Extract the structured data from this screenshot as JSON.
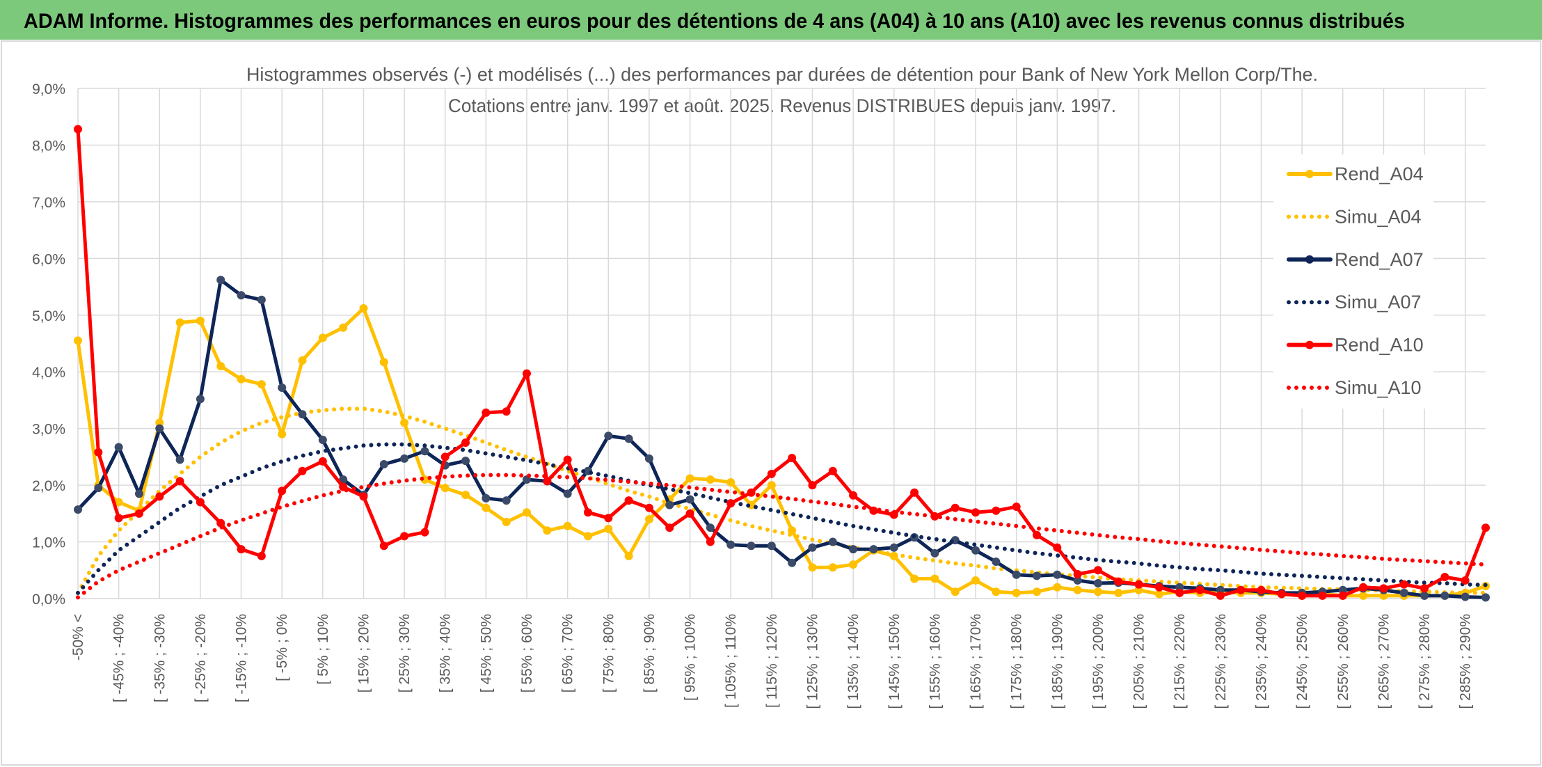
{
  "chart_data": {
    "type": "line",
    "header": "ADAM Informe. Histogrammes des performances en euros pour des détentions de 4 ans (A04) à 10 ans (A10) avec les revenus connus distribués",
    "title": [
      "Histogrammes observés (-) et modélisés (...) des performances par durées de détention pour Bank of New York Mellon Corp/The.",
      "Cotations entre janv. 1997 et août. 2025. Revenus DISTRIBUES depuis janv. 1997."
    ],
    "categories": [
      "-50% <",
      null,
      "[ -45% ; -40%",
      null,
      "[ -35% ; -30%",
      null,
      "[ -25% ; -20%",
      null,
      "[ -15% ; -10%",
      null,
      "[ -5% ; 0%",
      null,
      "[ 5% ; 10%",
      null,
      "[ 15% ; 20%",
      null,
      "[ 25% ; 30%",
      null,
      "[ 35% ; 40%",
      null,
      "[ 45% ; 50%",
      null,
      "[ 55% ; 60%",
      null,
      "[ 65% ; 70%",
      null,
      "[ 75% ; 80%",
      null,
      "[ 85% ; 90%",
      null,
      "[ 95% ; 100%",
      null,
      "[ 105% ; 110%",
      null,
      "[ 115% ; 120%",
      null,
      "[ 125% ; 130%",
      null,
      "[ 135% ; 140%",
      null,
      "[ 145% ; 150%",
      null,
      "[ 155% ; 160%",
      null,
      "[ 165% ; 170%",
      null,
      "[ 175% ; 180%",
      null,
      "[ 185% ; 190%",
      null,
      "[ 195% ; 200%",
      null,
      "[ 205% ; 210%",
      null,
      "[ 215% ; 220%",
      null,
      "[ 225% ; 230%",
      null,
      "[ 235% ; 240%",
      null,
      "[ 245% ; 250%",
      null,
      "[ 255% ; 260%",
      null,
      "[ 265% ; 270%",
      null,
      "[ 275% ; 280%",
      null,
      "[ 285% ; 290%",
      null
    ],
    "ylim": [
      0,
      9
    ],
    "yticks": [
      {
        "value": 0,
        "label": "0,0%"
      },
      {
        "value": 1,
        "label": "1,0%"
      },
      {
        "value": 2,
        "label": "2,0%"
      },
      {
        "value": 3,
        "label": "3,0%"
      },
      {
        "value": 4,
        "label": "4,0%"
      },
      {
        "value": 5,
        "label": "5,0%"
      },
      {
        "value": 6,
        "label": "6,0%"
      },
      {
        "value": 7,
        "label": "7,0%"
      },
      {
        "value": 8,
        "label": "8,0%"
      },
      {
        "value": 9,
        "label": "9,0%"
      }
    ],
    "grid": true,
    "legend": "right",
    "series": [
      {
        "name": "Rend_A04",
        "color": "#ffc000",
        "style": "solid",
        "markers": true,
        "values": [
          4.55,
          2.0,
          1.7,
          1.55,
          3.1,
          4.87,
          4.9,
          4.1,
          3.87,
          3.78,
          2.9,
          4.2,
          4.6,
          4.78,
          5.12,
          4.17,
          3.1,
          2.1,
          1.95,
          1.83,
          1.6,
          1.35,
          1.52,
          1.2,
          1.28,
          1.1,
          1.23,
          0.75,
          1.4,
          1.75,
          2.12,
          2.1,
          2.05,
          1.65,
          2.0,
          1.2,
          0.55,
          0.55,
          0.6,
          0.85,
          0.75,
          0.35,
          0.35,
          0.12,
          0.32,
          0.12,
          0.1,
          0.12,
          0.2,
          0.15,
          0.12,
          0.1,
          0.15,
          0.08,
          0.12,
          0.1,
          0.12,
          0.1,
          0.1,
          0.08,
          0.05,
          0.08,
          0.05,
          0.05,
          0.05,
          0.05,
          0.05,
          0.05,
          0.1,
          0.22
        ]
      },
      {
        "name": "Simu_A04",
        "color": "#ffc000",
        "style": "dotted",
        "markers": false,
        "values": [
          0.1,
          0.75,
          1.2,
          1.55,
          1.9,
          2.2,
          2.5,
          2.75,
          2.95,
          3.1,
          3.2,
          3.28,
          3.32,
          3.35,
          3.35,
          3.3,
          3.22,
          3.12,
          3.0,
          2.88,
          2.75,
          2.62,
          2.5,
          2.38,
          2.25,
          2.14,
          2.02,
          1.9,
          1.8,
          1.68,
          1.58,
          1.48,
          1.38,
          1.28,
          1.2,
          1.12,
          1.04,
          0.97,
          0.9,
          0.84,
          0.78,
          0.72,
          0.67,
          0.62,
          0.58,
          0.53,
          0.5,
          0.46,
          0.43,
          0.4,
          0.37,
          0.34,
          0.32,
          0.3,
          0.28,
          0.26,
          0.24,
          0.22,
          0.2,
          0.19,
          0.18,
          0.17,
          0.16,
          0.15,
          0.14,
          0.13,
          0.12,
          0.11,
          0.1,
          0.1
        ]
      },
      {
        "name": "Rend_A07",
        "color": "#0e2557",
        "style": "solid",
        "markers": true,
        "values": [
          1.57,
          1.95,
          2.67,
          1.85,
          3.0,
          2.45,
          3.52,
          5.62,
          5.35,
          5.27,
          3.72,
          3.25,
          2.8,
          2.1,
          1.83,
          2.37,
          2.47,
          2.6,
          2.35,
          2.43,
          1.77,
          1.73,
          2.1,
          2.07,
          1.85,
          2.25,
          2.87,
          2.82,
          2.47,
          1.65,
          1.75,
          1.25,
          0.95,
          0.93,
          0.93,
          0.63,
          0.9,
          1.0,
          0.87,
          0.87,
          0.9,
          1.08,
          0.8,
          1.03,
          0.85,
          0.65,
          0.42,
          0.4,
          0.42,
          0.32,
          0.27,
          0.28,
          0.25,
          0.22,
          0.2,
          0.18,
          0.15,
          0.15,
          0.12,
          0.1,
          0.1,
          0.12,
          0.15,
          0.18,
          0.15,
          0.1,
          0.05,
          0.05,
          0.03,
          0.02
        ]
      },
      {
        "name": "Simu_A07",
        "color": "#0e2557",
        "style": "dotted",
        "markers": false,
        "values": [
          0.1,
          0.5,
          0.85,
          1.1,
          1.35,
          1.6,
          1.8,
          2.0,
          2.15,
          2.3,
          2.42,
          2.52,
          2.6,
          2.65,
          2.7,
          2.72,
          2.72,
          2.7,
          2.66,
          2.62,
          2.56,
          2.5,
          2.44,
          2.37,
          2.3,
          2.23,
          2.16,
          2.08,
          2.0,
          1.93,
          1.86,
          1.78,
          1.7,
          1.63,
          1.56,
          1.49,
          1.42,
          1.35,
          1.28,
          1.22,
          1.16,
          1.1,
          1.05,
          1.0,
          0.95,
          0.9,
          0.85,
          0.8,
          0.76,
          0.72,
          0.68,
          0.65,
          0.62,
          0.58,
          0.55,
          0.52,
          0.5,
          0.47,
          0.44,
          0.42,
          0.4,
          0.38,
          0.36,
          0.34,
          0.32,
          0.3,
          0.28,
          0.27,
          0.25,
          0.24
        ]
      },
      {
        "name": "Rend_A10",
        "color": "#ff0000",
        "style": "solid",
        "markers": true,
        "values": [
          8.28,
          2.58,
          1.42,
          1.5,
          1.8,
          2.07,
          1.7,
          1.33,
          0.87,
          0.75,
          1.9,
          2.25,
          2.42,
          1.97,
          1.8,
          0.93,
          1.1,
          1.17,
          2.5,
          2.75,
          3.28,
          3.3,
          3.97,
          2.07,
          2.45,
          1.52,
          1.42,
          1.73,
          1.6,
          1.25,
          1.5,
          1.0,
          1.68,
          1.87,
          2.2,
          2.48,
          2.0,
          2.25,
          1.82,
          1.55,
          1.48,
          1.87,
          1.45,
          1.6,
          1.52,
          1.55,
          1.62,
          1.12,
          0.9,
          0.43,
          0.5,
          0.3,
          0.25,
          0.2,
          0.1,
          0.15,
          0.05,
          0.15,
          0.15,
          0.08,
          0.05,
          0.05,
          0.05,
          0.2,
          0.18,
          0.25,
          0.18,
          0.38,
          0.32,
          1.25
        ]
      },
      {
        "name": "Simu_A10",
        "color": "#ff0000",
        "style": "dotted",
        "markers": false,
        "values": [
          0.02,
          0.3,
          0.5,
          0.65,
          0.8,
          0.95,
          1.1,
          1.25,
          1.38,
          1.5,
          1.62,
          1.72,
          1.82,
          1.9,
          1.97,
          2.03,
          2.08,
          2.12,
          2.15,
          2.17,
          2.18,
          2.18,
          2.17,
          2.16,
          2.14,
          2.12,
          2.09,
          2.06,
          2.03,
          2.0,
          1.96,
          1.92,
          1.88,
          1.84,
          1.8,
          1.76,
          1.71,
          1.67,
          1.62,
          1.58,
          1.53,
          1.49,
          1.45,
          1.4,
          1.36,
          1.32,
          1.28,
          1.24,
          1.2,
          1.16,
          1.12,
          1.08,
          1.05,
          1.01,
          0.98,
          0.95,
          0.92,
          0.89,
          0.86,
          0.83,
          0.8,
          0.78,
          0.75,
          0.73,
          0.7,
          0.68,
          0.66,
          0.64,
          0.62,
          0.6
        ]
      }
    ]
  }
}
